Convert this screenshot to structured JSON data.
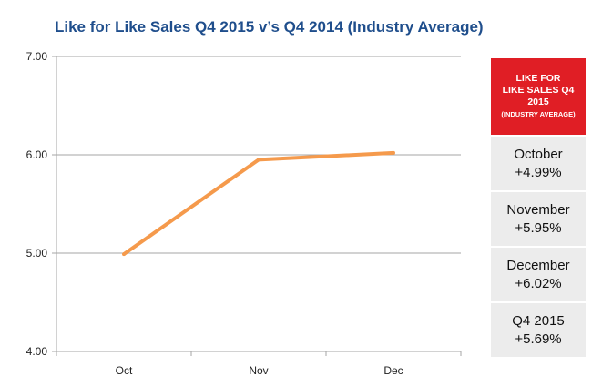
{
  "chart_data": {
    "type": "line",
    "title": "Like for Like Sales Q4 2015 v’s Q4 2014 (Industry Average)",
    "categories": [
      "Oct",
      "Nov",
      "Dec"
    ],
    "series": [
      {
        "name": "Like for Like Sales Q4 2015 (Industry Average)",
        "values": [
          4.99,
          5.95,
          6.02
        ],
        "color": "#f59a4c"
      }
    ],
    "yticks": [
      "4.00",
      "5.00",
      "6.00",
      "7.00"
    ],
    "ylim": [
      4.0,
      7.0
    ],
    "xlabel": "",
    "ylabel": "",
    "grid": true
  },
  "panel": {
    "header_line1": "LIKE FOR",
    "header_line2": "LIKE SALES Q4",
    "header_line3": "2015",
    "header_sub": "(INDUSTRY AVERAGE)",
    "header_color": "#e01e25",
    "rows": [
      {
        "label": "October",
        "value": "+4.99%"
      },
      {
        "label": "November",
        "value": "+5.95%"
      },
      {
        "label": "December",
        "value": "+6.02%"
      },
      {
        "label": "Q4 2015",
        "value": "+5.69%"
      }
    ]
  },
  "colors": {
    "title": "#1f4e8c",
    "grid": "#a6a6a6",
    "line": "#f59a4c"
  }
}
